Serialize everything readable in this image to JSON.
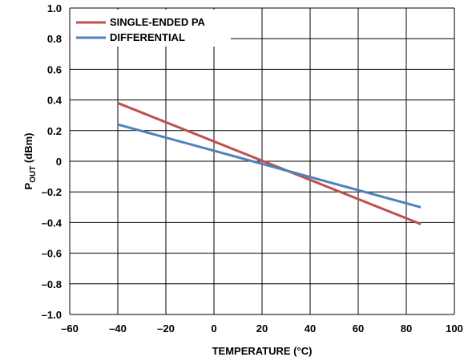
{
  "chart_data": {
    "type": "line",
    "xlabel": "TEMPERATURE (°C)",
    "ylabel_main": "P",
    "ylabel_sub": "OUT",
    "ylabel_unit": " (dBm)",
    "xlim": [
      -60,
      100
    ],
    "ylim": [
      -1.0,
      1.0
    ],
    "x_ticks": [
      -60,
      -40,
      -20,
      0,
      20,
      40,
      60,
      80,
      100
    ],
    "x_tick_labels": [
      "–60",
      "–40",
      "–20",
      "0",
      "20",
      "40",
      "60",
      "80",
      "100"
    ],
    "y_ticks": [
      1.0,
      0.8,
      0.6,
      0.4,
      0.2,
      0,
      -0.2,
      -0.4,
      -0.6,
      -0.8,
      -1.0
    ],
    "y_tick_labels": [
      "1.0",
      "0.8",
      "0.6",
      "0.4",
      "0.2",
      "0",
      "–0.2",
      "–0.4",
      "–0.6",
      "–0.8",
      "–1.0"
    ],
    "grid": true,
    "legend_position": "top-left",
    "series": [
      {
        "name": "SINGLE-ENDED PA",
        "color": "#c0504d",
        "x": [
          -40,
          86
        ],
        "y": [
          0.38,
          -0.41
        ]
      },
      {
        "name": "DIFFERENTIAL",
        "color": "#4f81bd",
        "x": [
          -40,
          86
        ],
        "y": [
          0.24,
          -0.3
        ]
      }
    ]
  }
}
